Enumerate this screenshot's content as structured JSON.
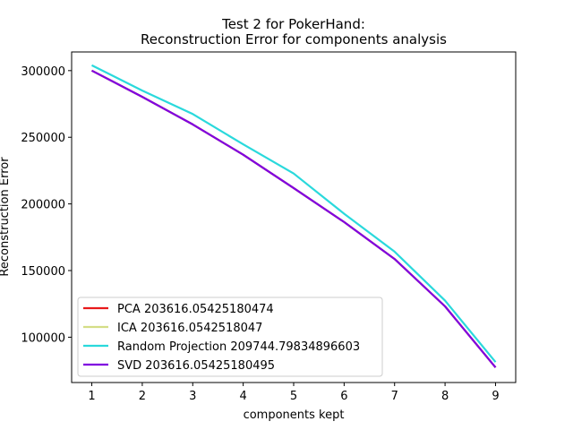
{
  "chart_data": {
    "type": "line",
    "title": "Test 2 for PokerHand:",
    "subtitle": "Reconstruction Error for components analysis",
    "xlabel": "components kept",
    "ylabel": "Reconstruction Error",
    "xlim": [
      0.6,
      9.4
    ],
    "ylim": [
      66000,
      314000
    ],
    "x": [
      1,
      2,
      3,
      4,
      5,
      6,
      7,
      8,
      9
    ],
    "xticks": [
      1,
      2,
      3,
      4,
      5,
      6,
      7,
      8,
      9
    ],
    "yticks": [
      100000,
      150000,
      200000,
      250000,
      300000
    ],
    "grid": false,
    "legend_position": "lower-left",
    "series": [
      {
        "name": "PCA 203616.05425180474",
        "color": "#e8191b",
        "values": [
          300000,
          280300,
          259600,
          236900,
          211900,
          186400,
          158700,
          123100,
          77300
        ]
      },
      {
        "name": "ICA 203616.0542518047",
        "color": "#d4dd86",
        "values": [
          300000,
          280300,
          259600,
          236900,
          211900,
          186400,
          158700,
          123100,
          77300
        ]
      },
      {
        "name": "Random Projection 209744.79834896603",
        "color": "#2ad9dc",
        "values": [
          304000,
          285000,
          267400,
          244700,
          222800,
          192600,
          164200,
          127400,
          81300
        ]
      },
      {
        "name": "SVD 203616.05425180495",
        "color": "#8000e0",
        "values": [
          300000,
          280300,
          259600,
          236900,
          211900,
          186400,
          158700,
          123100,
          77300
        ]
      }
    ]
  }
}
